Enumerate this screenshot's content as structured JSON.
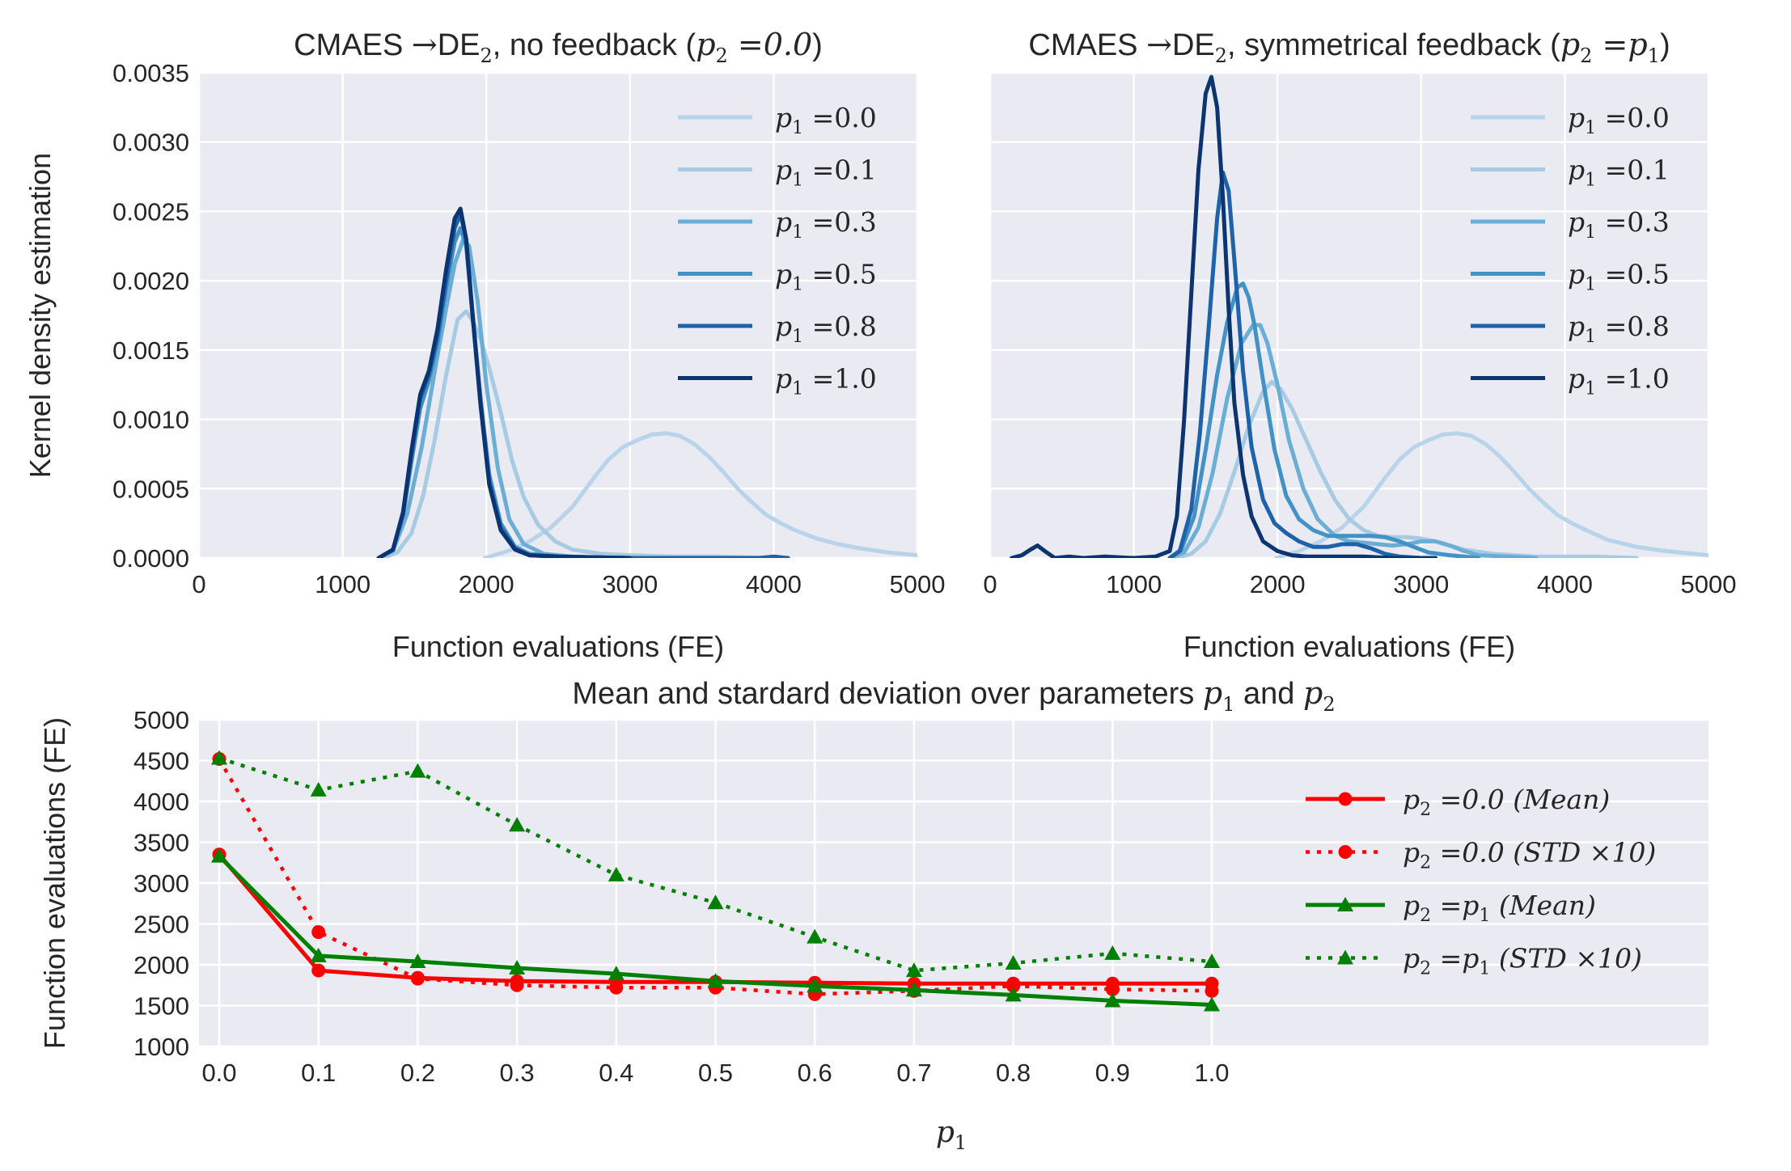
{
  "chart_data": [
    {
      "type": "line",
      "title_prefix": "CMAES",
      "title_arrow": "→",
      "title_de": "DE",
      "title_sub": "2",
      "title_rest": ", no feedback (",
      "title_math": "p",
      "title_math_sub": "2",
      "title_math_eq": "=0.0",
      "title_close": ")",
      "xlabel": "Function evaluations (FE)",
      "ylabel": "Kernel density estimation",
      "xlim": [
        0,
        5000
      ],
      "ylim": [
        0,
        0.0035
      ],
      "xticks": [
        "0",
        "1000",
        "2000",
        "3000",
        "4000",
        "5000"
      ],
      "yticks": [
        "0.0000",
        "0.0005",
        "0.0010",
        "0.0015",
        "0.0020",
        "0.0025",
        "0.0030",
        "0.0035"
      ],
      "legend_position": "top-right",
      "series": [
        {
          "name": "p₁ =0.0",
          "label_var": "p",
          "label_sub": "1",
          "label_eq": "=0.0",
          "color": "#b7d4ea",
          "x": [
            1990,
            2150,
            2300,
            2450,
            2600,
            2750,
            2850,
            2950,
            3050,
            3150,
            3250,
            3350,
            3450,
            3550,
            3650,
            3750,
            3850,
            3950,
            4050,
            4150,
            4300,
            4450,
            4600,
            4800,
            5000
          ],
          "y": [
            0.0,
            5e-05,
            0.00012,
            0.00022,
            0.00037,
            0.00058,
            0.00071,
            0.0008,
            0.00085,
            0.00089,
            0.0009,
            0.00088,
            0.00082,
            0.00073,
            0.00062,
            0.0005,
            0.0004,
            0.00031,
            0.00025,
            0.0002,
            0.00014,
            0.0001,
            7e-05,
            4e-05,
            2e-05
          ]
        },
        {
          "name": "p₁ =0.1",
          "label_var": "p",
          "label_sub": "1",
          "label_eq": "=0.1",
          "color": "#a6cbe3",
          "x": [
            1280,
            1380,
            1480,
            1560,
            1640,
            1720,
            1800,
            1860,
            1900,
            1960,
            2020,
            2100,
            2180,
            2260,
            2360,
            2480,
            2600,
            2800,
            3000,
            3300,
            3600,
            4000
          ],
          "y": [
            0.0,
            4e-05,
            0.00018,
            0.00045,
            0.00085,
            0.00132,
            0.00172,
            0.00178,
            0.00172,
            0.00158,
            0.00137,
            0.00105,
            0.0007,
            0.00044,
            0.00024,
            0.00012,
            6e-05,
            3e-05,
            2e-05,
            1e-05,
            1e-05,
            0.0
          ]
        },
        {
          "name": "p₁ =0.3",
          "label_var": "p",
          "label_sub": "1",
          "label_eq": "=0.3",
          "color": "#6aaed6",
          "x": [
            1250,
            1350,
            1450,
            1550,
            1650,
            1720,
            1780,
            1840,
            1880,
            1940,
            2000,
            2080,
            2160,
            2260,
            2400,
            2600,
            3000,
            4000
          ],
          "y": [
            0.0,
            5e-05,
            0.00032,
            0.0008,
            0.0014,
            0.0018,
            0.00212,
            0.0023,
            0.00225,
            0.00185,
            0.00125,
            0.00065,
            0.00028,
            0.0001,
            3e-05,
            1e-05,
            0.0,
            0.0
          ]
        },
        {
          "name": "p₁ =0.5",
          "label_var": "p",
          "label_sub": "1",
          "label_eq": "=0.5",
          "color": "#4292c6",
          "x": [
            1250,
            1350,
            1420,
            1480,
            1540,
            1600,
            1660,
            1720,
            1780,
            1820,
            1860,
            1900,
            1960,
            2020,
            2100,
            2200,
            2300,
            2500,
            3000,
            4000
          ],
          "y": [
            0.0,
            6e-05,
            0.0003,
            0.0007,
            0.00108,
            0.00128,
            0.00155,
            0.00195,
            0.00228,
            0.00238,
            0.00225,
            0.0018,
            0.00115,
            0.0006,
            0.00025,
            8e-05,
            3e-05,
            1e-05,
            0.0,
            0.0
          ]
        },
        {
          "name": "p₁ =0.8",
          "label_var": "p",
          "label_sub": "1",
          "label_eq": "=0.8",
          "color": "#1e63a9",
          "x": [
            1250,
            1350,
            1420,
            1480,
            1540,
            1600,
            1660,
            1720,
            1780,
            1820,
            1860,
            1900,
            1960,
            2020,
            2100,
            2200,
            2300,
            2500,
            3000,
            3900,
            4000,
            4100
          ],
          "y": [
            0.0,
            6e-05,
            0.00032,
            0.00075,
            0.00115,
            0.00132,
            0.0016,
            0.002,
            0.00238,
            0.00248,
            0.0023,
            0.00182,
            0.00112,
            0.00055,
            0.00022,
            7e-05,
            2e-05,
            1e-05,
            0.0,
            0.0,
            1e-05,
            0.0
          ]
        },
        {
          "name": "p₁ =1.0",
          "label_var": "p",
          "label_sub": "1",
          "label_eq": "=1.0",
          "color": "#0c3470",
          "x": [
            1250,
            1350,
            1420,
            1480,
            1540,
            1600,
            1660,
            1720,
            1780,
            1820,
            1860,
            1900,
            1960,
            2020,
            2100,
            2200,
            2300,
            2500,
            3000
          ],
          "y": [
            0.0,
            6e-05,
            0.00033,
            0.00078,
            0.00118,
            0.00135,
            0.00165,
            0.00208,
            0.00245,
            0.00252,
            0.0023,
            0.0018,
            0.0011,
            0.00053,
            0.0002,
            6e-05,
            2e-05,
            1e-05,
            0.0
          ]
        }
      ]
    },
    {
      "type": "line",
      "title_prefix": "CMAES",
      "title_arrow": "→",
      "title_de": "DE",
      "title_sub": "2",
      "title_rest": ", symmetrical feedback (",
      "title_math": "p",
      "title_math_sub": "2",
      "title_math_eq": "=p",
      "title_math_sub2": "1",
      "title_close": ")",
      "xlabel": "Function evaluations (FE)",
      "xlim": [
        0,
        5000
      ],
      "ylim": [
        0,
        0.0035
      ],
      "xticks": [
        "0",
        "1000",
        "2000",
        "3000",
        "4000",
        "5000"
      ],
      "legend_position": "top-right",
      "series": [
        {
          "name": "p₁ =0.0",
          "label_var": "p",
          "label_sub": "1",
          "label_eq": "=0.0",
          "color": "#b7d4ea",
          "x": [
            1990,
            2150,
            2300,
            2450,
            2600,
            2750,
            2850,
            2950,
            3050,
            3150,
            3250,
            3350,
            3450,
            3550,
            3650,
            3750,
            3850,
            3950,
            4050,
            4150,
            4300,
            4500,
            4700,
            5000
          ],
          "y": [
            0.0,
            5e-05,
            0.00012,
            0.00022,
            0.00037,
            0.00058,
            0.00071,
            0.0008,
            0.00085,
            0.00089,
            0.0009,
            0.00088,
            0.00082,
            0.00073,
            0.00062,
            0.0005,
            0.0004,
            0.00031,
            0.00025,
            0.0002,
            0.00013,
            8e-05,
            5e-05,
            2e-05
          ]
        },
        {
          "name": "p₁ =0.1",
          "label_var": "p",
          "label_sub": "1",
          "label_eq": "=0.1",
          "color": "#a6cbe3",
          "x": [
            1300,
            1400,
            1500,
            1600,
            1700,
            1800,
            1900,
            1960,
            2020,
            2100,
            2200,
            2300,
            2400,
            2500,
            2600,
            2700,
            2800,
            2900,
            3000,
            3100,
            3200,
            3300,
            3500,
            3800,
            4200,
            4500
          ],
          "y": [
            0.0,
            3e-05,
            0.00012,
            0.00032,
            0.00062,
            0.00095,
            0.0012,
            0.00127,
            0.00122,
            0.00108,
            0.00085,
            0.00062,
            0.00042,
            0.00028,
            0.0002,
            0.00016,
            0.00015,
            0.00015,
            0.00014,
            0.00012,
            9e-05,
            6e-05,
            3e-05,
            1e-05,
            1e-05,
            0.0
          ]
        },
        {
          "name": "p₁ =0.3",
          "label_var": "p",
          "label_sub": "1",
          "label_eq": "=0.3",
          "color": "#6aaed6",
          "x": [
            1250,
            1350,
            1450,
            1550,
            1650,
            1750,
            1830,
            1880,
            1930,
            2000,
            2080,
            2180,
            2280,
            2400,
            2500,
            2600,
            2700,
            2800,
            2900,
            3000,
            3100,
            3200,
            3300,
            3400,
            3600,
            3800
          ],
          "y": [
            0.0,
            4e-05,
            0.00022,
            0.00062,
            0.00115,
            0.00155,
            0.00168,
            0.00168,
            0.00155,
            0.00125,
            0.00085,
            0.0005,
            0.00028,
            0.00016,
            0.00012,
            0.00011,
            0.0001,
            9e-05,
            0.0001,
            0.00012,
            0.00012,
            9e-05,
            5e-05,
            2e-05,
            1e-05,
            0.0
          ]
        },
        {
          "name": "p₁ =0.5",
          "label_var": "p",
          "label_sub": "1",
          "label_eq": "=0.5",
          "color": "#4292c6",
          "x": [
            1250,
            1330,
            1420,
            1500,
            1580,
            1650,
            1720,
            1760,
            1800,
            1840,
            1900,
            1980,
            2060,
            2150,
            2250,
            2350,
            2450,
            2550,
            2650,
            2750,
            2850,
            2950,
            3050,
            3200,
            3400
          ],
          "y": [
            0.0,
            6e-05,
            0.0003,
            0.00078,
            0.00132,
            0.0017,
            0.00195,
            0.00198,
            0.00188,
            0.00168,
            0.00128,
            0.00078,
            0.00045,
            0.00028,
            0.0002,
            0.00016,
            0.00016,
            0.00016,
            0.00016,
            0.00015,
            0.00012,
            8e-05,
            4e-05,
            2e-05,
            0.0
          ]
        },
        {
          "name": "p₁ =0.8",
          "label_var": "p",
          "label_sub": "1",
          "label_eq": "=0.8",
          "color": "#1e63a9",
          "x": [
            1250,
            1320,
            1400,
            1460,
            1520,
            1580,
            1620,
            1660,
            1700,
            1760,
            1820,
            1900,
            1980,
            2060,
            2150,
            2250,
            2350,
            2450,
            2550,
            2650,
            2750,
            2850,
            3000
          ],
          "y": [
            0.0,
            5e-05,
            0.00035,
            0.0009,
            0.00165,
            0.00245,
            0.00278,
            0.00265,
            0.00215,
            0.00135,
            0.0008,
            0.00042,
            0.00025,
            0.00018,
            0.00012,
            8e-05,
            8e-05,
            0.0001,
            0.0001,
            7e-05,
            3e-05,
            1e-05,
            0.0
          ]
        },
        {
          "name": "p₁ =1.0",
          "label_var": "p",
          "label_sub": "1",
          "label_eq": "=1.0",
          "color": "#0c3470",
          "x": [
            150,
            220,
            280,
            330,
            380,
            450,
            550,
            650,
            800,
            1000,
            1150,
            1250,
            1300,
            1350,
            1400,
            1450,
            1500,
            1540,
            1580,
            1620,
            1660,
            1700,
            1760,
            1820,
            1900,
            2000,
            2100,
            2200,
            2400,
            2600,
            2800,
            3100
          ],
          "y": [
            0.0,
            2e-05,
            6e-05,
            9e-05,
            5e-05,
            0.0,
            1e-05,
            0.0,
            1e-05,
            0.0,
            1e-05,
            5e-05,
            0.0003,
            0.001,
            0.0019,
            0.0028,
            0.00335,
            0.00347,
            0.00325,
            0.0026,
            0.0018,
            0.00112,
            0.0006,
            0.0003,
            0.00012,
            5e-05,
            2e-05,
            1e-05,
            1e-05,
            1e-05,
            0.0,
            0.0
          ]
        }
      ]
    },
    {
      "type": "line",
      "title_text": "Mean and stardard deviation over parameters ",
      "title_var1": "p",
      "title_var1_sub": "1",
      "title_and": " and ",
      "title_var2": "p",
      "title_var2_sub": "2",
      "xlabel_var": "p",
      "xlabel_sub": "1",
      "ylabel": "Function evaluations (FE)",
      "ylim": [
        1000,
        5000
      ],
      "yticks": [
        "1000",
        "1500",
        "2000",
        "2500",
        "3000",
        "3500",
        "4000",
        "4500",
        "5000"
      ],
      "categories": [
        "0.0",
        "0.1",
        "0.2",
        "0.3",
        "0.4",
        "0.5",
        "0.6",
        "0.7",
        "0.8",
        "0.9",
        "1.0"
      ],
      "legend_position": "right",
      "series": [
        {
          "name": "p₂ =0.0 (Mean)",
          "label_var": "p",
          "label_sub": "2",
          "label_eq": "=0.0 (Mean)",
          "color": "#ff0000",
          "style": "solid",
          "marker": "circle",
          "values": [
            3350,
            1930,
            1840,
            1800,
            1790,
            1790,
            1780,
            1770,
            1770,
            1770,
            1770
          ]
        },
        {
          "name": "p₂ =0.0 (STD ×10)",
          "label_var": "p",
          "label_sub": "2",
          "label_eq": "=0.0 (STD ×10)",
          "color": "#ff0000",
          "style": "dotted",
          "marker": "circle",
          "values": [
            4520,
            2400,
            1830,
            1750,
            1720,
            1720,
            1640,
            1680,
            1740,
            1700,
            1680
          ]
        },
        {
          "name": "p₂ =p₁ (Mean)",
          "label_var": "p",
          "label_sub": "2",
          "label_eq": "=p",
          "label_sub2": "1",
          "label_tail": " (Mean)",
          "color": "#008000",
          "style": "solid",
          "marker": "triangle",
          "values": [
            3330,
            2110,
            2040,
            1960,
            1890,
            1800,
            1740,
            1690,
            1630,
            1560,
            1510
          ]
        },
        {
          "name": "p₂ =p₁ (STD ×10)",
          "label_var": "p",
          "label_sub": "2",
          "label_eq": "=p",
          "label_sub2": "1",
          "label_tail": " (STD ×10)",
          "color": "#008000",
          "style": "dotted",
          "marker": "triangle",
          "values": [
            4530,
            4140,
            4370,
            3710,
            3100,
            2760,
            2340,
            1930,
            2020,
            2140,
            2040
          ]
        }
      ]
    }
  ]
}
